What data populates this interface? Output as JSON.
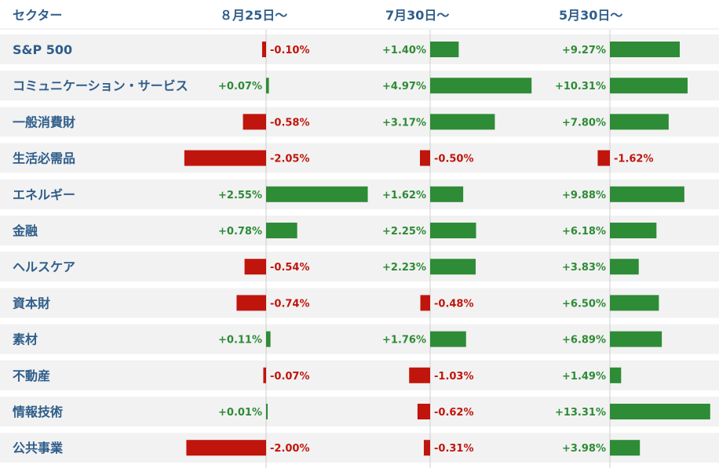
{
  "header": {
    "sector_label": "セクター",
    "periods": [
      "８月25日〜",
      "7月30日〜",
      "5月30日〜"
    ]
  },
  "colors": {
    "positive": "#2e8b36",
    "negative": "#c0150c",
    "label": "#2f5d8a",
    "row_band": "#f2f2f2",
    "zero_line": "#cfcfcf"
  },
  "chart_data": {
    "type": "bar",
    "orientation": "horizontal",
    "categories": [
      "S&P 500",
      "コミュニケーション・サービス",
      "一般消費財",
      "生活必需品",
      "エネルギー",
      "金融",
      "ヘルスケア",
      "資本財",
      "素材",
      "不動産",
      "情報技術",
      "公共事業"
    ],
    "series": [
      {
        "name": "８月25日〜",
        "values": [
          -0.1,
          0.07,
          -0.58,
          -2.05,
          2.55,
          0.78,
          -0.54,
          -0.74,
          0.11,
          -0.07,
          0.01,
          -2.0
        ],
        "labels": [
          "-0.10%",
          "+0.07%",
          "-0.58%",
          "-2.05%",
          "+2.55%",
          "+0.78%",
          "-0.54%",
          "-0.74%",
          "+0.11%",
          "-0.07%",
          "+0.01%",
          "-2.00%"
        ]
      },
      {
        "name": "7月30日〜",
        "values": [
          1.4,
          4.97,
          3.17,
          -0.5,
          1.62,
          2.25,
          2.23,
          -0.48,
          1.76,
          -1.03,
          -0.62,
          -0.31
        ],
        "labels": [
          "+1.40%",
          "+4.97%",
          "+3.17%",
          "-0.50%",
          "+1.62%",
          "+2.25%",
          "+2.23%",
          "-0.48%",
          "+1.76%",
          "-1.03%",
          "-0.62%",
          "-0.31%"
        ]
      },
      {
        "name": "5月30日〜",
        "values": [
          9.27,
          10.31,
          7.8,
          -1.62,
          9.88,
          6.18,
          3.83,
          6.5,
          6.89,
          1.49,
          13.31,
          3.98
        ],
        "labels": [
          "+9.27%",
          "+10.31%",
          "+7.80%",
          "-1.62%",
          "+9.88%",
          "+6.18%",
          "+3.83%",
          "+6.50%",
          "+6.89%",
          "+1.49%",
          "+13.31%",
          "+3.98%"
        ]
      }
    ]
  }
}
